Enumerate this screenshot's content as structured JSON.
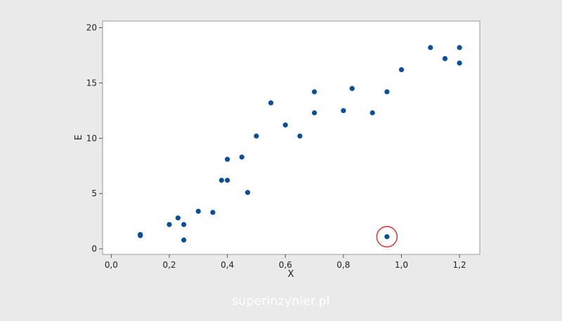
{
  "chart_data": {
    "type": "scatter",
    "title": "",
    "xlabel": "X",
    "ylabel": "E",
    "xlim": [
      -0.03,
      1.27
    ],
    "ylim": [
      -0.5,
      20.6
    ],
    "x_ticks": [
      0.0,
      0.2,
      0.4,
      0.6,
      0.8,
      1.0,
      1.2
    ],
    "x_tick_labels": [
      "0,0",
      "0,2",
      "0,4",
      "0,6",
      "0,8",
      "1,0",
      "1,2"
    ],
    "y_ticks": [
      0,
      5,
      10,
      15,
      20
    ],
    "y_tick_labels": [
      "0",
      "5",
      "10",
      "15",
      "20"
    ],
    "grid": false,
    "marker_color": "#0a4f9c",
    "highlight_color": "#e0292e",
    "highlighted_point_index": 26,
    "points": [
      {
        "x": 0.1,
        "y": 1.3
      },
      {
        "x": 0.1,
        "y": 1.2
      },
      {
        "x": 0.2,
        "y": 2.2
      },
      {
        "x": 0.23,
        "y": 2.8
      },
      {
        "x": 0.25,
        "y": 2.2
      },
      {
        "x": 0.25,
        "y": 0.8
      },
      {
        "x": 0.3,
        "y": 3.4
      },
      {
        "x": 0.35,
        "y": 3.3
      },
      {
        "x": 0.38,
        "y": 6.2
      },
      {
        "x": 0.4,
        "y": 6.2
      },
      {
        "x": 0.4,
        "y": 8.1
      },
      {
        "x": 0.45,
        "y": 8.3
      },
      {
        "x": 0.47,
        "y": 5.1
      },
      {
        "x": 0.5,
        "y": 10.2
      },
      {
        "x": 0.55,
        "y": 13.2
      },
      {
        "x": 0.6,
        "y": 11.2
      },
      {
        "x": 0.65,
        "y": 10.2
      },
      {
        "x": 0.7,
        "y": 14.2
      },
      {
        "x": 0.7,
        "y": 12.3
      },
      {
        "x": 0.8,
        "y": 12.5
      },
      {
        "x": 0.83,
        "y": 14.5
      },
      {
        "x": 0.9,
        "y": 12.3
      },
      {
        "x": 0.95,
        "y": 14.2
      },
      {
        "x": 1.0,
        "y": 16.2
      },
      {
        "x": 1.1,
        "y": 18.2
      },
      {
        "x": 1.15,
        "y": 17.2
      },
      {
        "x": 0.95,
        "y": 1.1
      },
      {
        "x": 1.2,
        "y": 18.2
      },
      {
        "x": 1.2,
        "y": 16.8
      }
    ]
  },
  "watermark": "superinzynier.pl"
}
